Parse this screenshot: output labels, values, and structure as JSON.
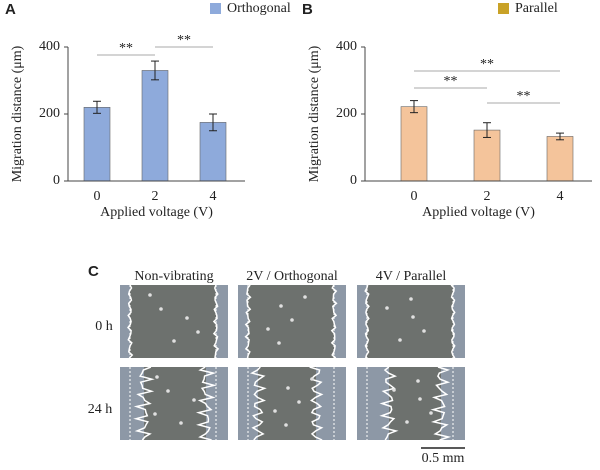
{
  "chart_data": [
    {
      "type": "bar",
      "panel": "A",
      "legend_color": "#8eaadb",
      "categories": [
        "0",
        "2",
        "4"
      ],
      "series": [
        {
          "name": "Orthogonal",
          "color": "#8eaadb",
          "values": [
            220,
            330,
            175
          ],
          "errors": [
            18,
            28,
            25
          ]
        }
      ],
      "xlabel": "Applied voltage (V)",
      "ylabel": "Migration distance (μm)",
      "ylim": [
        0,
        400
      ],
      "yticks": [
        0,
        200,
        400
      ],
      "significance": [
        {
          "pair": [
            0,
            1
          ],
          "label": "**"
        },
        {
          "pair": [
            1,
            2
          ],
          "label": "**"
        }
      ]
    },
    {
      "type": "bar",
      "panel": "B",
      "legend_color": "#c9a227",
      "categories": [
        "0",
        "2",
        "4"
      ],
      "series": [
        {
          "name": "Parallel",
          "color": "#f4c49b",
          "values": [
            222,
            152,
            133
          ],
          "errors": [
            18,
            22,
            10
          ]
        }
      ],
      "xlabel": "Applied voltage (V)",
      "ylabel": "Migration distance (μm)",
      "ylim": [
        0,
        400
      ],
      "yticks": [
        0,
        200,
        400
      ],
      "significance": [
        {
          "pair": [
            0,
            1
          ],
          "label": "**"
        },
        {
          "pair": [
            0,
            2
          ],
          "label": "**"
        },
        {
          "pair": [
            1,
            2
          ],
          "label": "**"
        }
      ]
    }
  ],
  "panel_c": {
    "label": "C",
    "columns": [
      "Non-vibrating",
      "2V / Orthogonal",
      "4V / Parallel"
    ],
    "rows": [
      "0 h",
      "24 h"
    ],
    "scale_bar": "0.5 mm"
  }
}
